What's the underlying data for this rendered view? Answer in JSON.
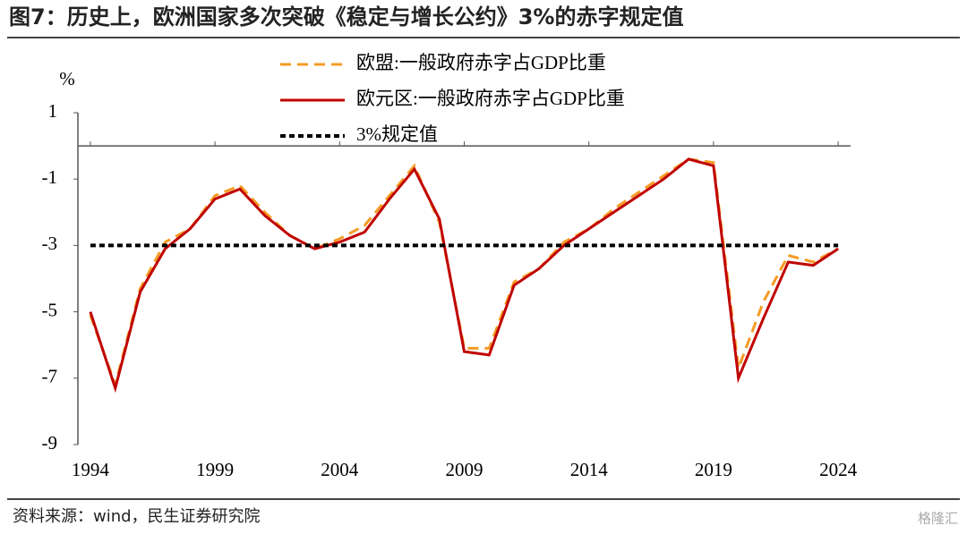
{
  "header": {
    "title": "图7：历史上，欧洲国家多次突破《稳定与增长公约》3%的赤字规定值"
  },
  "footer": {
    "source": "资料来源：wind，民生证券研究院",
    "watermark": "格隆汇"
  },
  "chart_data": {
    "type": "line",
    "y_label": "%",
    "x": [
      1994,
      1995,
      1996,
      1997,
      1998,
      1999,
      2000,
      2001,
      2002,
      2003,
      2004,
      2005,
      2006,
      2007,
      2008,
      2009,
      2010,
      2011,
      2012,
      2013,
      2014,
      2015,
      2016,
      2017,
      2018,
      2019,
      2020,
      2021,
      2022,
      2023,
      2024
    ],
    "series": [
      {
        "name": "欧盟:一般政府赤字占GDP比重",
        "color": "#f59b23",
        "dash": "dashed",
        "values": [
          -5.1,
          -7.2,
          -4.3,
          -2.9,
          -2.5,
          -1.5,
          -1.2,
          -2.0,
          -2.7,
          -3.1,
          -2.8,
          -2.4,
          -1.5,
          -0.6,
          -2.3,
          -6.1,
          -6.1,
          -4.1,
          -3.7,
          -2.9,
          -2.5,
          -1.9,
          -1.4,
          -0.9,
          -0.4,
          -0.5,
          -6.7,
          -4.7,
          -3.3,
          -3.5,
          -3.1
        ]
      },
      {
        "name": "欧元区:一般政府赤字占GDP比重",
        "color": "#c00000",
        "dash": "solid",
        "values": [
          -5.0,
          -7.3,
          -4.4,
          -3.1,
          -2.5,
          -1.6,
          -1.3,
          -2.1,
          -2.7,
          -3.1,
          -2.9,
          -2.6,
          -1.6,
          -0.7,
          -2.2,
          -6.2,
          -6.3,
          -4.2,
          -3.7,
          -3.0,
          -2.5,
          -2.0,
          -1.5,
          -1.0,
          -0.4,
          -0.6,
          -7.0,
          -5.2,
          -3.5,
          -3.6,
          -3.1
        ]
      },
      {
        "name": "3%规定值",
        "color": "#000000",
        "dash": "dotted",
        "values": [
          -3,
          -3,
          -3,
          -3,
          -3,
          -3,
          -3,
          -3,
          -3,
          -3,
          -3,
          -3,
          -3,
          -3,
          -3,
          -3,
          -3,
          -3,
          -3,
          -3,
          -3,
          -3,
          -3,
          -3,
          -3,
          -3,
          -3,
          -3,
          -3,
          -3,
          -3
        ]
      }
    ],
    "xlim": [
      1993.5,
      2024.5
    ],
    "xticks": [
      1994,
      1999,
      2004,
      2009,
      2014,
      2019,
      2024
    ],
    "ylim": [
      -9,
      1
    ],
    "yticks": [
      1,
      -1,
      -3,
      -5,
      -7,
      -9
    ],
    "grid": false
  }
}
